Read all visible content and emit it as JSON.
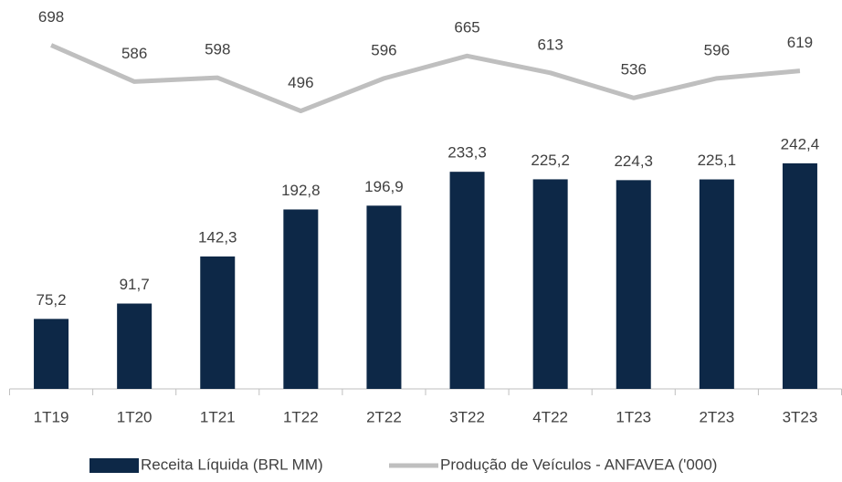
{
  "chart_data": {
    "type": "bar",
    "categories": [
      "1T19",
      "1T20",
      "1T21",
      "1T22",
      "2T22",
      "3T22",
      "4T22",
      "1T23",
      "2T23",
      "3T23"
    ],
    "series": [
      {
        "name": "Receita Líquida (BRL MM)",
        "type": "bar",
        "color": "#0d2847",
        "values": [
          75.2,
          91.7,
          142.3,
          192.8,
          196.9,
          233.3,
          225.2,
          224.3,
          225.1,
          242.4
        ],
        "value_labels": [
          "75,2",
          "91,7",
          "142,3",
          "192,8",
          "196,9",
          "233,3",
          "225,2",
          "224,3",
          "225,1",
          "242,4"
        ]
      },
      {
        "name": "Produção de Veículos - ANFAVEA ('000)",
        "type": "line",
        "axis": "y2",
        "color": "#bfbfbf",
        "values": [
          698,
          586,
          598,
          496,
          596,
          665,
          613,
          536,
          596,
          619
        ]
      }
    ],
    "ylim": [
      0,
      412
    ],
    "y2lim": [
      -358,
      820
    ],
    "legend": "bottom"
  }
}
